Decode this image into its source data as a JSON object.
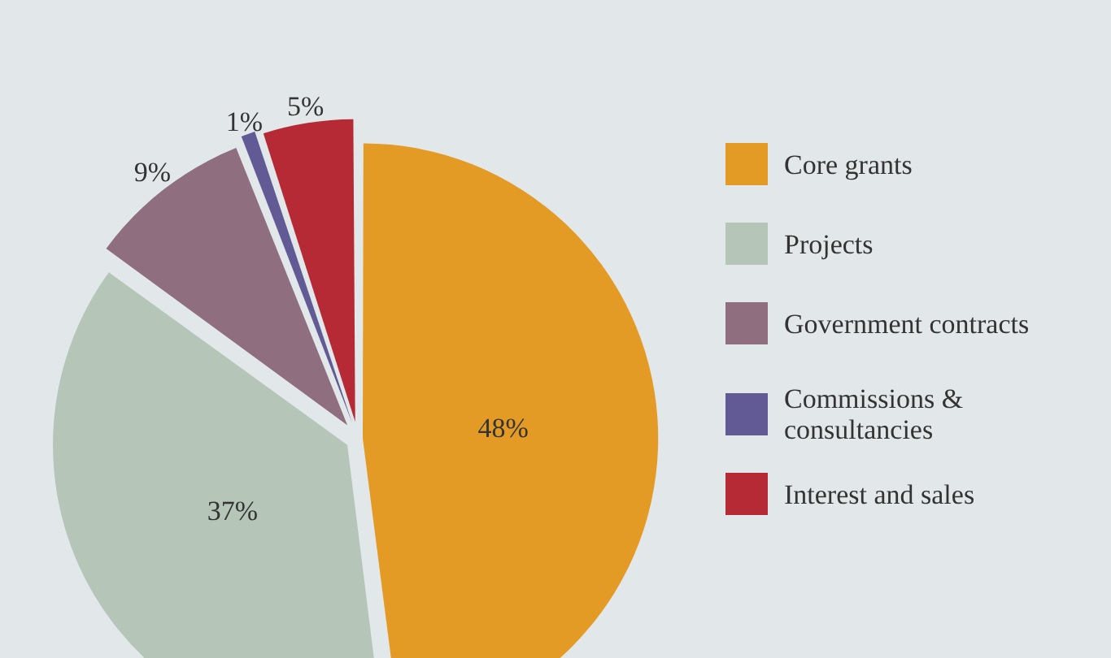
{
  "chart_data": {
    "type": "pie",
    "categories": [
      "Core grants",
      "Projects",
      "Government contracts",
      "Commissions & consultancies",
      "Interest and sales"
    ],
    "values": [
      48,
      37,
      9,
      1,
      5
    ],
    "value_labels": [
      "48%",
      "37%",
      "9%",
      "1%",
      "5%"
    ],
    "colors": [
      "#e39b25",
      "#b5c6b9",
      "#8f6f7f",
      "#625a94",
      "#b52a35"
    ],
    "legend": "right"
  }
}
